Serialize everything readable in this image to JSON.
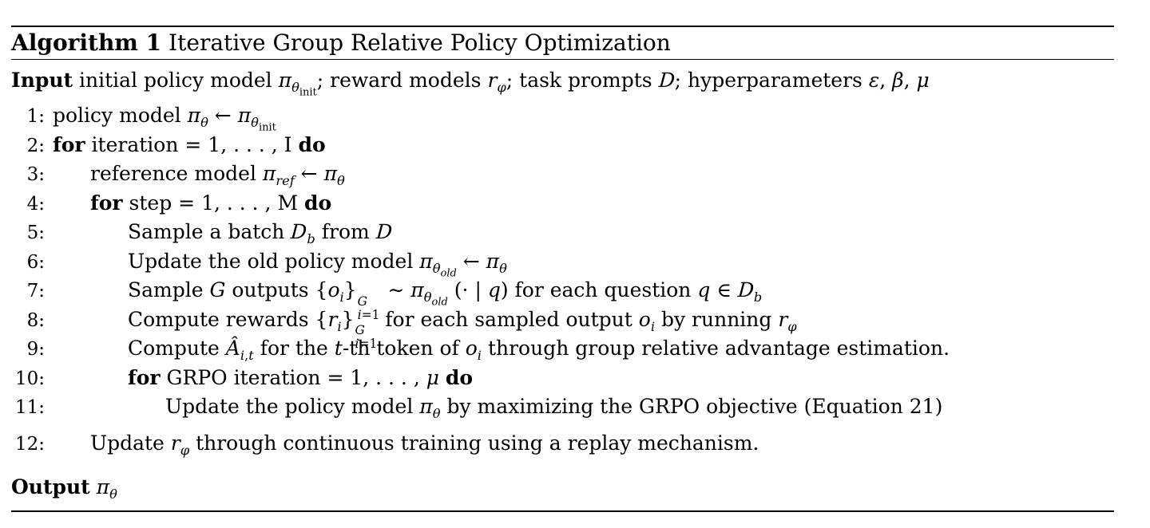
{
  "title": {
    "label": "Algorithm 1",
    "text": " Iterative Group Relative Policy Optimization"
  },
  "input_html": "<b>Input</b> initial policy model <i>π</i><sub><i>θ</i><sub class='rm'>init</sub></sub>; reward models <i>r</i><sub><i>φ</i></sub>; task prompts <span class='cal'>D</span>; hyperparameters <i>ε</i>, <i>β</i>, <i>μ</i>",
  "lines": [
    {
      "num": "1:",
      "indent": 0,
      "space_before": false,
      "html": "policy model <i>π</i><sub><i>θ</i></sub> ← <i>π</i><sub><i>θ</i><sub class='rm'>init</sub></sub>"
    },
    {
      "num": "2:",
      "indent": 0,
      "space_before": false,
      "html": "<b>for</b> iteration = 1, . . . , I <b>do</b>"
    },
    {
      "num": "3:",
      "indent": 1,
      "space_before": false,
      "html": "reference model <i>π</i><sub><i>ref</i></sub> ← <i>π</i><sub><i>θ</i></sub>"
    },
    {
      "num": "4:",
      "indent": 1,
      "space_before": false,
      "html": "<b>for</b> step = 1, . . . , M <b>do</b>"
    },
    {
      "num": "5:",
      "indent": 2,
      "space_before": false,
      "html": "Sample a batch <span class='cal'>D</span><sub><i>b</i></sub> from <span class='cal'>D</span>"
    },
    {
      "num": "6:",
      "indent": 2,
      "space_before": false,
      "html": "Update the old policy model <i>π</i><sub><i>θ</i><sub class='it'>old</sub></sub> ← <i>π</i><sub><i>θ</i></sub>"
    },
    {
      "num": "7:",
      "indent": 2,
      "space_before": false,
      "html": "Sample <i>G</i> outputs {<i>o<sub>i</sub></i>}<span class='ss'><span><i>G</i></span><span><i>i</i>=1</span></span> ∼ <i>π</i><sub><i>θ</i><sub class='it'>old</sub></sub> (· | <i>q</i>) for each question <i>q</i> ∈ <span class='cal'>D</span><sub><i>b</i></sub>"
    },
    {
      "num": "8:",
      "indent": 2,
      "space_before": false,
      "html": "Compute rewards {<i>r<sub>i</sub></i>}<span class='ss'><span><i>G</i></span><span><i>i</i>=1</span></span> for each sampled output <i>o<sub>i</sub></i> by running <i>r</i><sub><i>φ</i></sub>"
    },
    {
      "num": "9:",
      "indent": 2,
      "space_before": false,
      "html": "Compute <i>Â</i><sub><i>i</i>,<i>t</i></sub> for the <i>t</i>-th token of <i>o<sub>i</sub></i> through group relative advantage estimation."
    },
    {
      "num": "10:",
      "indent": 2,
      "space_before": false,
      "html": "<b>for</b> GRPO iteration = 1, . . . , <i>μ</i> <b>do</b>"
    },
    {
      "num": "11:",
      "indent": 3,
      "space_before": false,
      "html": "Update the policy model <i>π</i><sub><i>θ</i></sub> by maximizing the GRPO objective (Equation 21)"
    },
    {
      "num": "12:",
      "indent": 1,
      "space_before": true,
      "html": "Update <i>r</i><sub><i>φ</i></sub> through continuous training using a replay mechanism."
    }
  ],
  "output_html": "<b>Output</b> <i>π</i><sub><i>θ</i></sub>"
}
